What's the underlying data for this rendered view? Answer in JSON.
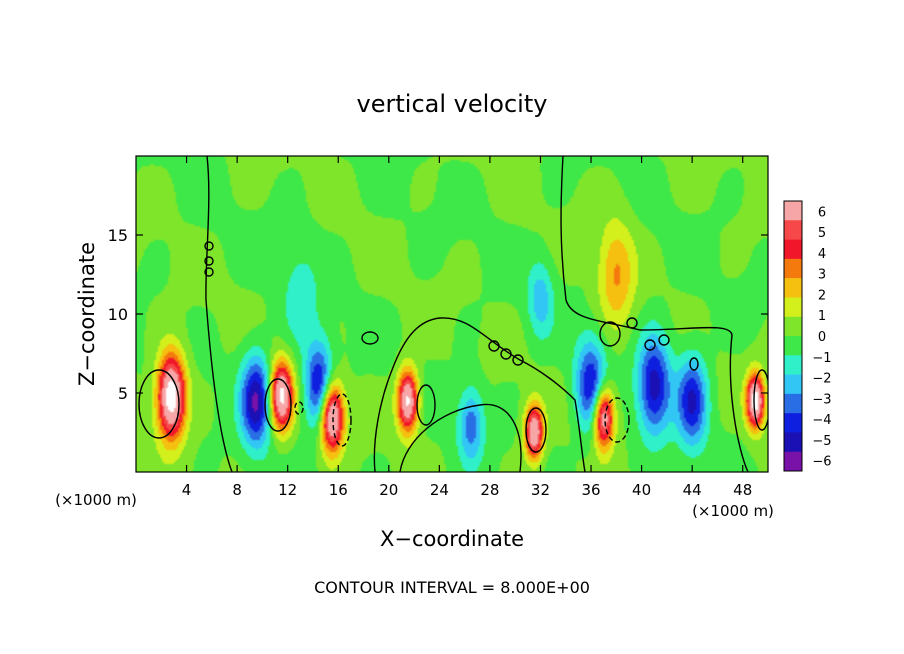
{
  "chart_data": {
    "type": "heatmap",
    "title": "vertical velocity",
    "xlabel": "X−coordinate",
    "ylabel": "Z−coordinate",
    "x_unit_left": "(×1000 m)",
    "x_unit_right": "(×1000 m)",
    "xlim": [
      0,
      50
    ],
    "ylim": [
      0,
      20
    ],
    "x_ticks": [
      4,
      8,
      12,
      16,
      20,
      24,
      28,
      32,
      36,
      40,
      44,
      48
    ],
    "y_ticks": [
      5,
      10,
      15
    ],
    "colorbar": {
      "levels": [
        6,
        5,
        4,
        3,
        2,
        1,
        0,
        -1,
        -2,
        -3,
        -4,
        -5,
        -6
      ],
      "labels": [
        "6",
        "5",
        "4",
        "3",
        "2",
        "1",
        "0",
        "−1",
        "−2",
        "−3",
        "−4",
        "−5",
        "−6"
      ],
      "colors": [
        "#f6a6a6",
        "#f64848",
        "#f2162a",
        "#f57a0e",
        "#f5c010",
        "#d4f01c",
        "#7ee52a",
        "#3ee848",
        "#2ff0c8",
        "#32c6f5",
        "#2a6ee6",
        "#0f1fe0",
        "#1a10b4",
        "#7812a8"
      ]
    },
    "features": [
      {
        "x": 2.8,
        "z": 4.8,
        "w": 1.1,
        "value": 9.5
      },
      {
        "x": 11.5,
        "z": 4.8,
        "w": 0.9,
        "value": 8.5
      },
      {
        "x": 15.5,
        "z": 3.5,
        "w": 0.9,
        "value": 9.0
      },
      {
        "x": 21.5,
        "z": 4.5,
        "w": 0.8,
        "value": 8.5
      },
      {
        "x": 31.5,
        "z": 2.5,
        "w": 0.7,
        "value": 8.0
      },
      {
        "x": 37.0,
        "z": 3.5,
        "w": 0.8,
        "value": 8.0
      },
      {
        "x": 49.0,
        "z": 4.5,
        "w": 0.7,
        "value": 9.0
      },
      {
        "x": 9.5,
        "z": 4.5,
        "w": 1.2,
        "value": -6.0
      },
      {
        "x": 14.5,
        "z": 5.5,
        "w": 1.1,
        "value": -5.5
      },
      {
        "x": 26.5,
        "z": 3.0,
        "w": 1.0,
        "value": -3.5
      },
      {
        "x": 36.0,
        "z": 5.5,
        "w": 1.2,
        "value": -5.0
      },
      {
        "x": 41.0,
        "z": 5.5,
        "w": 1.3,
        "value": -5.5
      },
      {
        "x": 44.0,
        "z": 4.5,
        "w": 1.2,
        "value": -5.0
      },
      {
        "x": 38.0,
        "z": 12.5,
        "w": 1.4,
        "value": 3.0
      },
      {
        "x": 32.0,
        "z": 11.0,
        "w": 1.0,
        "value": -2.5
      },
      {
        "x": 13.0,
        "z": 11.0,
        "w": 1.5,
        "value": -1.5
      }
    ],
    "footer": "CONTOUR INTERVAL = 8.000E+00"
  }
}
